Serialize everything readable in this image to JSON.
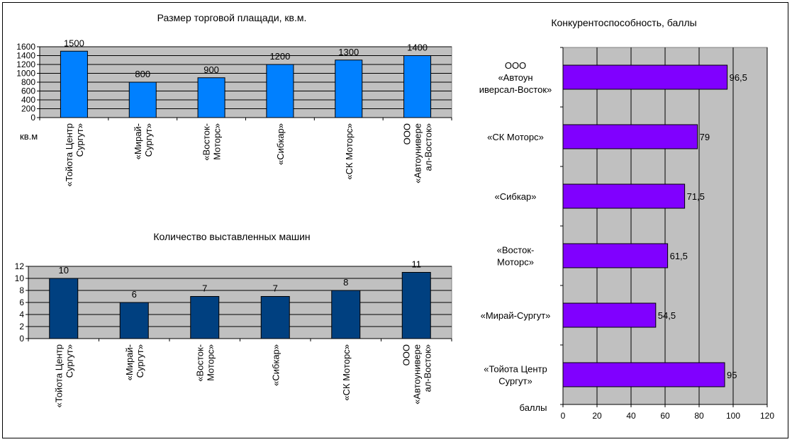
{
  "chart_data": [
    {
      "type": "bar",
      "title": "Размер торговой плащади, кв.м.",
      "ylabel": "кв.м",
      "categories": [
        [
          "«Тойота Центр",
          "Сургут»"
        ],
        [
          "«Мирай-",
          "Сургут»"
        ],
        [
          "«Восток-",
          "Моторс»"
        ],
        [
          "«Сибкар»"
        ],
        [
          "«СК Моторс»"
        ],
        [
          "ООО",
          "«Автоунивере",
          "ал-Восток»"
        ]
      ],
      "values": [
        1500,
        800,
        900,
        1200,
        1300,
        1400
      ],
      "data_labels": [
        "1500",
        "800",
        "900",
        "1200",
        "1300",
        "1400"
      ],
      "ylim": [
        0,
        1600
      ],
      "yticks": [
        0,
        200,
        400,
        600,
        800,
        1000,
        1200,
        1400,
        1600
      ],
      "grid": true,
      "colors": {
        "bar": "#0080ff",
        "plot_bg": "#c0c0c0"
      }
    },
    {
      "type": "bar",
      "title": "Количество выставленных машин",
      "ylabel": "",
      "categories": [
        [
          "«Тойота Центр",
          "Сургут»"
        ],
        [
          "«Мирай-",
          "Сургут»"
        ],
        [
          "«Восток-",
          "Моторс»"
        ],
        [
          "«Сибкар»"
        ],
        [
          "«СК Моторс»"
        ],
        [
          "ООО",
          "«Автоунивере",
          "ал-Восток»"
        ]
      ],
      "values": [
        10,
        6,
        7,
        7,
        8,
        11
      ],
      "data_labels": [
        "10",
        "6",
        "7",
        "7",
        "8",
        "11"
      ],
      "ylim": [
        0,
        12
      ],
      "yticks": [
        0,
        2,
        4,
        6,
        8,
        10,
        12
      ],
      "grid": true,
      "colors": {
        "bar": "#004080",
        "plot_bg": "#c0c0c0"
      }
    },
    {
      "type": "bar",
      "orientation": "horizontal",
      "title": "Конкурентоспособность, баллы",
      "xlabel": "баллы",
      "categories": [
        [
          "ООО",
          "«Автоун",
          "иверсал-Восток»"
        ],
        [
          "«СК Моторс»"
        ],
        [
          "«Сибкар»"
        ],
        [
          "«Восток-",
          "Моторс»"
        ],
        [
          "«Мирай-Сургут»"
        ],
        [
          "«Тойота Центр",
          "Сургут»"
        ]
      ],
      "values": [
        96.5,
        79,
        71.5,
        61.5,
        54.5,
        95
      ],
      "data_labels": [
        "96,5",
        "79",
        "71,5",
        "61,5",
        "54,5",
        "95"
      ],
      "xlim": [
        0,
        120
      ],
      "xticks": [
        0,
        20,
        40,
        60,
        80,
        100,
        120
      ],
      "grid": true,
      "colors": {
        "bar": "#8000ff",
        "plot_bg": "#c0c0c0"
      }
    }
  ]
}
